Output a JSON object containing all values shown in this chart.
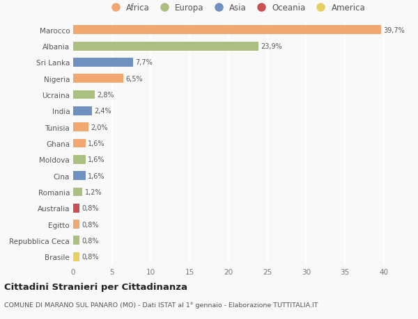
{
  "countries": [
    "Marocco",
    "Albania",
    "Sri Lanka",
    "Nigeria",
    "Ucraina",
    "India",
    "Tunisia",
    "Ghana",
    "Moldova",
    "Cina",
    "Romania",
    "Australia",
    "Egitto",
    "Repubblica Ceca",
    "Brasile"
  ],
  "values": [
    39.7,
    23.9,
    7.7,
    6.5,
    2.8,
    2.4,
    2.0,
    1.6,
    1.6,
    1.6,
    1.2,
    0.8,
    0.8,
    0.8,
    0.8
  ],
  "labels": [
    "39,7%",
    "23,9%",
    "7,7%",
    "6,5%",
    "2,8%",
    "2,4%",
    "2,0%",
    "1,6%",
    "1,6%",
    "1,6%",
    "1,2%",
    "0,8%",
    "0,8%",
    "0,8%",
    "0,8%"
  ],
  "continents": [
    "Africa",
    "Europa",
    "Asia",
    "Africa",
    "Europa",
    "Asia",
    "Africa",
    "Africa",
    "Europa",
    "Asia",
    "Europa",
    "Oceania",
    "Africa",
    "Europa",
    "America"
  ],
  "continent_colors": {
    "Africa": "#F0A870",
    "Europa": "#AABF80",
    "Asia": "#7090C0",
    "Oceania": "#C85050",
    "America": "#E8D060"
  },
  "legend_order": [
    "Africa",
    "Europa",
    "Asia",
    "Oceania",
    "America"
  ],
  "title": "Cittadini Stranieri per Cittadinanza",
  "subtitle": "COMUNE DI MARANO SUL PANARO (MO) - Dati ISTAT al 1° gennaio - Elaborazione TUTTITALIA.IT",
  "xlim": [
    0,
    42
  ],
  "xticks": [
    0,
    5,
    10,
    15,
    20,
    25,
    30,
    35,
    40
  ],
  "bg_color": "#f9f9f9",
  "grid_color": "#ffffff",
  "bar_height": 0.55
}
